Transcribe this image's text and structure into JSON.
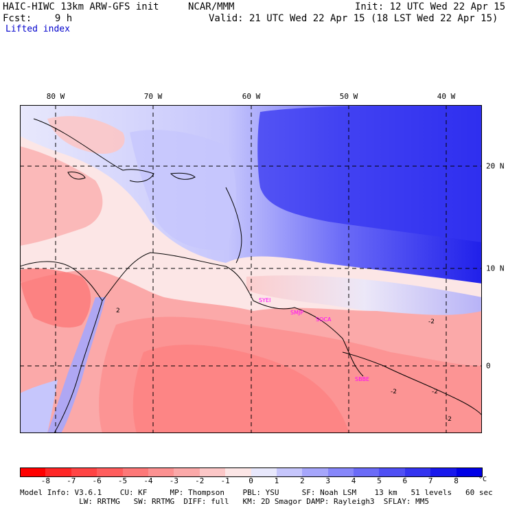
{
  "header": {
    "model": "HAIC-HIWC 13km ARW-GFS init",
    "org": "NCAR/MMM",
    "init": "Init: 12 UTC Wed 22 Apr 15",
    "fcst": "Fcst:    9 h",
    "valid": "Valid: 21 UTC Wed 22 Apr 15 (18 LST Wed 22 Apr 15)",
    "field": "Lifted index"
  },
  "axes": {
    "lon_labels": [
      "80 W",
      "70 W",
      "60 W",
      "50 W",
      "40 W"
    ],
    "lat_labels": [
      "20 N",
      "10 N",
      "0"
    ]
  },
  "contour_labels": [
    "2",
    "-2",
    "-2",
    "-2",
    "-2"
  ],
  "stations": [
    "SYEI",
    "SMJP",
    "SOCA",
    "SBBE"
  ],
  "colorbar": {
    "labels": [
      "-8",
      "-7",
      "-6",
      "-5",
      "-4",
      "-3",
      "-2",
      "-1",
      "0",
      "1",
      "2",
      "3",
      "4",
      "5",
      "6",
      "7",
      "8"
    ],
    "unit": "°C",
    "colors": [
      "#ff0000",
      "#ff2626",
      "#ff4444",
      "#ff5d5d",
      "#fd7878",
      "#fc9191",
      "#fba9a9",
      "#fcc7c7",
      "#fce6e6",
      "#e8e8fc",
      "#c6c6fc",
      "#a6a6fb",
      "#8787fa",
      "#6b6bf7",
      "#4f4ff4",
      "#3434f0",
      "#1818ec",
      "#0000e6"
    ]
  },
  "info": {
    "line1": "Model Info: V3.6.1    CU: KF     MP: Thompson    PBL: YSU     SF: Noah LSM    13 km   51 levels   60 sec",
    "line2": "             LW: RRTMG   SW: RRTMG  DIFF: full   KM: 2D Smagor DAMP: Rayleigh3  SFLAY: MM5"
  }
}
